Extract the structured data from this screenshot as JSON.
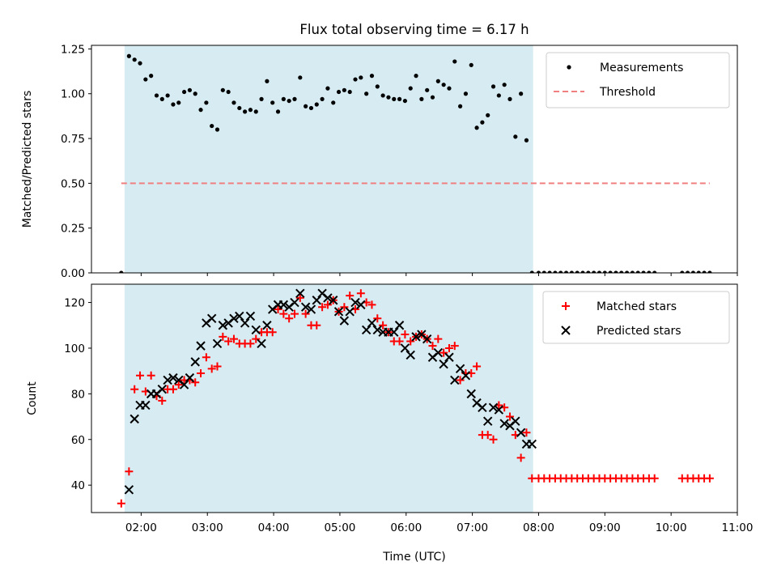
{
  "figure_title": "Flux total observing time = 6.17 h",
  "shaded_band": {
    "start": "01:45",
    "end": "07:55",
    "color": "#add8e6"
  },
  "chart_data": [
    {
      "type": "scatter",
      "ylabel": "Matched/Predicted stars",
      "xlabel": "",
      "ylim": [
        0,
        1.27
      ],
      "yticks": [
        "0.00",
        "0.25",
        "0.50",
        "0.75",
        "1.00",
        "1.25"
      ],
      "ytick_values": [
        0,
        0.25,
        0.5,
        0.75,
        1.0,
        1.25
      ],
      "legend_position": "top-right",
      "grid": false,
      "series": [
        {
          "name": "Measurements",
          "kind": "scatter",
          "color": "#000000",
          "x": [
            "01:42",
            "01:49",
            "01:54",
            "01:59",
            "02:04",
            "02:09",
            "02:14",
            "02:19",
            "02:24",
            "02:29",
            "02:34",
            "02:39",
            "02:44",
            "02:49",
            "02:54",
            "02:59",
            "03:04",
            "03:09",
            "03:14",
            "03:19",
            "03:24",
            "03:29",
            "03:34",
            "03:39",
            "03:44",
            "03:49",
            "03:54",
            "03:59",
            "04:04",
            "04:09",
            "04:14",
            "04:19",
            "04:24",
            "04:29",
            "04:34",
            "04:39",
            "04:44",
            "04:49",
            "04:54",
            "04:59",
            "05:04",
            "05:09",
            "05:14",
            "05:19",
            "05:24",
            "05:29",
            "05:34",
            "05:39",
            "05:44",
            "05:49",
            "05:54",
            "05:59",
            "06:04",
            "06:09",
            "06:14",
            "06:19",
            "06:24",
            "06:29",
            "06:34",
            "06:39",
            "06:44",
            "06:49",
            "06:54",
            "06:59",
            "07:04",
            "07:09",
            "07:14",
            "07:19",
            "07:24",
            "07:29",
            "07:34",
            "07:39",
            "07:44",
            "07:49",
            "07:54",
            "08:00",
            "08:05",
            "08:10",
            "08:15",
            "08:20",
            "08:25",
            "08:30",
            "08:35",
            "08:40",
            "08:45",
            "08:50",
            "08:55",
            "09:00",
            "09:05",
            "09:10",
            "09:15",
            "09:20",
            "09:25",
            "09:30",
            "09:35",
            "09:40",
            "09:45",
            "10:10",
            "10:15",
            "10:20",
            "10:25",
            "10:30",
            "10:35"
          ],
          "values": [
            0.0,
            1.21,
            1.19,
            1.17,
            1.08,
            1.1,
            0.99,
            0.97,
            0.99,
            0.94,
            0.95,
            1.01,
            1.02,
            1.0,
            0.91,
            0.95,
            0.82,
            0.8,
            1.02,
            1.01,
            0.95,
            0.92,
            0.9,
            0.91,
            0.9,
            0.97,
            1.07,
            0.95,
            0.9,
            0.97,
            0.96,
            0.97,
            1.09,
            0.93,
            0.92,
            0.94,
            0.97,
            1.03,
            0.95,
            1.01,
            1.02,
            1.01,
            1.08,
            1.09,
            1.0,
            1.1,
            1.04,
            0.99,
            0.98,
            0.97,
            0.97,
            0.96,
            1.03,
            1.1,
            0.97,
            1.02,
            0.98,
            1.07,
            1.05,
            1.03,
            1.18,
            0.93,
            1.0,
            1.16,
            0.81,
            0.84,
            0.88,
            1.04,
            0.99,
            1.05,
            0.97,
            0.76,
            1.0,
            0.74,
            0,
            0,
            0,
            0,
            0,
            0,
            0,
            0,
            0,
            0,
            0,
            0,
            0,
            0,
            0,
            0,
            0,
            0,
            0,
            0,
            0,
            0,
            0,
            0,
            0,
            0,
            0,
            0,
            0
          ]
        },
        {
          "name": "Threshold",
          "kind": "line",
          "style": "dashed",
          "color": "#f08080",
          "x": [
            "01:42",
            "10:35"
          ],
          "values": [
            0.5,
            0.5
          ]
        }
      ]
    },
    {
      "type": "scatter",
      "ylabel": "Count",
      "xlabel": "Time (UTC)",
      "ylim": [
        28,
        128
      ],
      "yticks": [
        "40",
        "60",
        "80",
        "100",
        "120"
      ],
      "ytick_values": [
        40,
        60,
        80,
        100,
        120
      ],
      "xticks": [
        "02:00",
        "03:00",
        "04:00",
        "05:00",
        "06:00",
        "07:00",
        "08:00",
        "09:00",
        "10:00",
        "11:00"
      ],
      "xlim": [
        "01:15",
        "11:00"
      ],
      "legend_position": "top-right",
      "grid": false,
      "series": [
        {
          "name": "Matched stars",
          "marker": "plus",
          "color": "#ff0000",
          "x": [
            "01:42",
            "01:49",
            "01:54",
            "01:59",
            "02:04",
            "02:09",
            "02:14",
            "02:19",
            "02:24",
            "02:29",
            "02:34",
            "02:39",
            "02:44",
            "02:49",
            "02:54",
            "02:59",
            "03:04",
            "03:09",
            "03:14",
            "03:19",
            "03:24",
            "03:29",
            "03:34",
            "03:39",
            "03:44",
            "03:49",
            "03:54",
            "03:59",
            "04:04",
            "04:09",
            "04:14",
            "04:19",
            "04:24",
            "04:29",
            "04:34",
            "04:39",
            "04:44",
            "04:49",
            "04:54",
            "04:59",
            "05:04",
            "05:09",
            "05:14",
            "05:19",
            "05:24",
            "05:29",
            "05:34",
            "05:39",
            "05:44",
            "05:49",
            "05:54",
            "05:59",
            "06:04",
            "06:09",
            "06:14",
            "06:19",
            "06:24",
            "06:29",
            "06:34",
            "06:39",
            "06:44",
            "06:49",
            "06:54",
            "06:59",
            "07:04",
            "07:09",
            "07:14",
            "07:19",
            "07:24",
            "07:29",
            "07:34",
            "07:39",
            "07:44",
            "07:49",
            "07:54",
            "08:00",
            "08:05",
            "08:10",
            "08:15",
            "08:20",
            "08:25",
            "08:30",
            "08:35",
            "08:40",
            "08:45",
            "08:50",
            "08:55",
            "09:00",
            "09:05",
            "09:10",
            "09:15",
            "09:20",
            "09:25",
            "09:30",
            "09:35",
            "09:40",
            "09:45",
            "10:10",
            "10:15",
            "10:20",
            "10:25",
            "10:30",
            "10:35"
          ],
          "values": [
            32,
            46,
            82,
            88,
            81,
            88,
            79,
            77,
            82,
            82,
            84,
            86,
            86,
            85,
            89,
            96,
            91,
            92,
            105,
            103,
            104,
            102,
            102,
            102,
            104,
            107,
            107,
            107,
            117,
            115,
            113,
            115,
            122,
            115,
            110,
            110,
            118,
            119,
            121,
            116,
            118,
            123,
            117,
            124,
            120,
            119,
            113,
            110,
            107,
            103,
            103,
            106,
            103,
            105,
            106,
            104,
            101,
            104,
            98,
            100,
            101,
            86,
            89,
            89,
            92,
            62,
            62,
            60,
            75,
            74,
            70,
            62,
            52,
            63,
            43,
            43,
            43,
            43,
            43,
            43,
            43,
            43,
            43,
            43,
            43,
            43,
            43,
            43,
            43,
            43,
            43,
            43,
            43,
            43,
            43,
            43,
            43,
            43,
            43,
            43,
            43,
            43,
            43
          ]
        },
        {
          "name": "Predicted stars",
          "marker": "x",
          "color": "#000000",
          "x": [
            "01:49",
            "01:54",
            "01:59",
            "02:04",
            "02:09",
            "02:14",
            "02:19",
            "02:24",
            "02:29",
            "02:34",
            "02:39",
            "02:44",
            "02:49",
            "02:54",
            "02:59",
            "03:04",
            "03:09",
            "03:14",
            "03:19",
            "03:24",
            "03:29",
            "03:34",
            "03:39",
            "03:44",
            "03:49",
            "03:54",
            "03:59",
            "04:04",
            "04:09",
            "04:14",
            "04:19",
            "04:24",
            "04:29",
            "04:34",
            "04:39",
            "04:44",
            "04:49",
            "04:54",
            "04:59",
            "05:04",
            "05:09",
            "05:14",
            "05:19",
            "05:24",
            "05:29",
            "05:34",
            "05:39",
            "05:44",
            "05:49",
            "05:54",
            "05:59",
            "06:04",
            "06:09",
            "06:14",
            "06:19",
            "06:24",
            "06:29",
            "06:34",
            "06:39",
            "06:44",
            "06:49",
            "06:54",
            "06:59",
            "07:04",
            "07:09",
            "07:14",
            "07:19",
            "07:24",
            "07:29",
            "07:34",
            "07:39",
            "07:44",
            "07:49",
            "07:54"
          ],
          "values": [
            38,
            69,
            75,
            75,
            80,
            80,
            82,
            86,
            87,
            86,
            84,
            87,
            94,
            101,
            111,
            113,
            102,
            110,
            111,
            113,
            114,
            111,
            114,
            108,
            102,
            110,
            117,
            119,
            119,
            118,
            120,
            124,
            118,
            117,
            121,
            124,
            122,
            121,
            116,
            112,
            116,
            120,
            119,
            108,
            111,
            108,
            107,
            107,
            107,
            110,
            100,
            97,
            105,
            106,
            104,
            96,
            98,
            93,
            96,
            86,
            91,
            88,
            80,
            76,
            74,
            68,
            74,
            73,
            67,
            66,
            68,
            63,
            58,
            58
          ]
        }
      ]
    }
  ]
}
